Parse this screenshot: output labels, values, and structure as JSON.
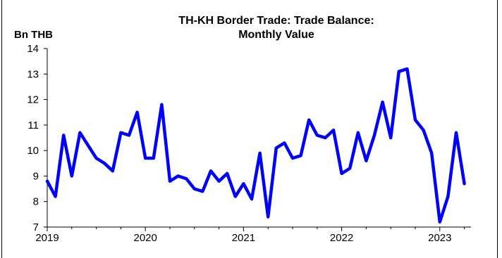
{
  "chart_data": {
    "type": "line",
    "title_line1": "TH-KH Border Trade: Trade Balance:",
    "title_line2": "Monthly Value",
    "ylabel": "Bn THB",
    "xlabel": "",
    "ylim": [
      7,
      14
    ],
    "yticks": [
      7,
      8,
      9,
      10,
      11,
      12,
      13,
      14
    ],
    "x_start": "2019-01",
    "xticks": [
      "2019",
      "2020",
      "2021",
      "2022",
      "2023"
    ],
    "grid": false,
    "legend": "none",
    "series": [
      {
        "color": "#0000ff",
        "x": [
          "2019-01",
          "2019-02",
          "2019-03",
          "2019-04",
          "2019-05",
          "2019-06",
          "2019-07",
          "2019-08",
          "2019-09",
          "2019-10",
          "2019-11",
          "2019-12",
          "2020-01",
          "2020-02",
          "2020-03",
          "2020-04",
          "2020-05",
          "2020-06",
          "2020-07",
          "2020-08",
          "2020-09",
          "2020-10",
          "2020-11",
          "2020-12",
          "2021-01",
          "2021-02",
          "2021-03",
          "2021-04",
          "2021-05",
          "2021-06",
          "2021-07",
          "2021-08",
          "2021-09",
          "2021-10",
          "2021-11",
          "2021-12",
          "2022-01",
          "2022-02",
          "2022-03",
          "2022-04",
          "2022-05",
          "2022-06",
          "2022-07",
          "2022-08",
          "2022-09",
          "2022-10",
          "2022-11",
          "2022-12",
          "2023-01",
          "2023-02",
          "2023-03",
          "2023-04"
        ],
        "values": [
          8.8,
          8.2,
          10.6,
          9.0,
          10.7,
          10.2,
          9.7,
          9.5,
          9.2,
          10.7,
          10.6,
          11.5,
          9.7,
          9.7,
          11.8,
          8.8,
          9.0,
          8.9,
          8.5,
          8.4,
          9.2,
          8.8,
          9.1,
          8.2,
          8.7,
          8.1,
          9.9,
          7.4,
          10.1,
          10.3,
          9.7,
          9.8,
          11.2,
          10.6,
          10.5,
          10.8,
          9.1,
          9.3,
          10.7,
          9.6,
          10.6,
          11.9,
          10.5,
          13.1,
          13.2,
          11.2,
          10.8,
          9.9,
          7.2,
          8.2,
          10.7,
          8.7
        ]
      }
    ]
  }
}
